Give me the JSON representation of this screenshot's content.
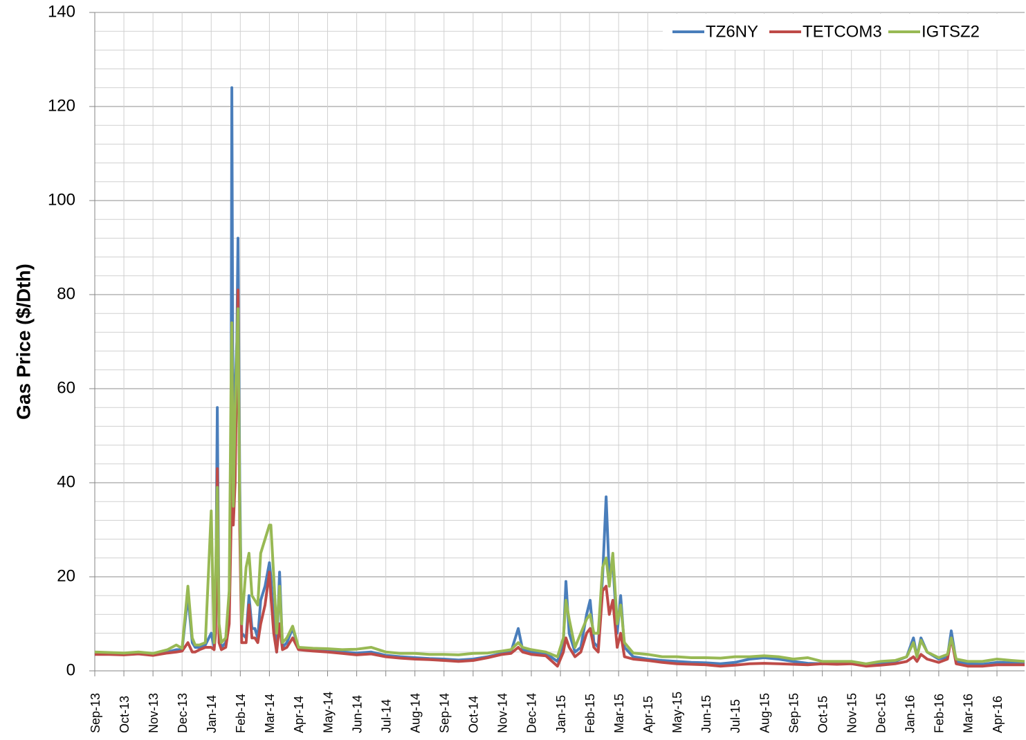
{
  "chart_data": {
    "type": "line",
    "ylabel": "Gas Price ($/Dth)",
    "ylim": [
      0,
      140
    ],
    "yticks": [
      0,
      20,
      40,
      60,
      80,
      100,
      120,
      140
    ],
    "minor_grid_step": 4,
    "grid": true,
    "legend": "top-right",
    "xlim": [
      0,
      31.95
    ],
    "xticks": [
      {
        "value": 0,
        "label": "Sep-13"
      },
      {
        "value": 1,
        "label": "Oct-13"
      },
      {
        "value": 2,
        "label": "Nov-13"
      },
      {
        "value": 3,
        "label": "Dec-13"
      },
      {
        "value": 4,
        "label": "Jan-14"
      },
      {
        "value": 5,
        "label": "Feb-14"
      },
      {
        "value": 6,
        "label": "Mar-14"
      },
      {
        "value": 7,
        "label": "Apr-14"
      },
      {
        "value": 8,
        "label": "May-14"
      },
      {
        "value": 9,
        "label": "Jun-14"
      },
      {
        "value": 10,
        "label": "Jul-14"
      },
      {
        "value": 11,
        "label": "Aug-14"
      },
      {
        "value": 12,
        "label": "Sep-14"
      },
      {
        "value": 13,
        "label": "Oct-14"
      },
      {
        "value": 14,
        "label": "Nov-14"
      },
      {
        "value": 15,
        "label": "Dec-14"
      },
      {
        "value": 16,
        "label": "Jan-15"
      },
      {
        "value": 17,
        "label": "Feb-15"
      },
      {
        "value": 18,
        "label": "Mar-15"
      },
      {
        "value": 19,
        "label": "Apr-15"
      },
      {
        "value": 20,
        "label": "May-15"
      },
      {
        "value": 21,
        "label": "Jun-15"
      },
      {
        "value": 22,
        "label": "Jul-15"
      },
      {
        "value": 23,
        "label": "Aug-15"
      },
      {
        "value": 24,
        "label": "Sep-15"
      },
      {
        "value": 25,
        "label": "Oct-15"
      },
      {
        "value": 26,
        "label": "Nov-15"
      },
      {
        "value": 27,
        "label": "Dec-15"
      },
      {
        "value": 28,
        "label": "Jan-16"
      },
      {
        "value": 29,
        "label": "Feb-16"
      },
      {
        "value": 30,
        "label": "Mar-16"
      },
      {
        "value": 31,
        "label": "Apr-16"
      }
    ],
    "x": [
      0,
      0.5,
      1,
      1.5,
      2,
      2.5,
      2.8,
      3.0,
      3.2,
      3.35,
      3.45,
      3.6,
      3.8,
      4.0,
      4.1,
      4.15,
      4.21,
      4.27,
      4.35,
      4.5,
      4.62,
      4.68,
      4.71,
      4.76,
      4.82,
      4.88,
      4.92,
      4.98,
      5.05,
      5.2,
      5.3,
      5.4,
      5.5,
      5.6,
      5.7,
      5.85,
      6.0,
      6.05,
      6.15,
      6.25,
      6.35,
      6.45,
      6.6,
      6.8,
      7.0,
      7.5,
      8,
      8.5,
      9,
      9.5,
      10,
      10.5,
      11,
      11.5,
      12,
      12.5,
      13,
      13.5,
      14,
      14.3,
      14.55,
      14.7,
      15,
      15.5,
      15.9,
      16.1,
      16.19,
      16.3,
      16.5,
      16.7,
      16.9,
      17.02,
      17.15,
      17.3,
      17.45,
      17.57,
      17.68,
      17.8,
      17.95,
      18.07,
      18.2,
      18.5,
      19,
      19.5,
      20,
      20.5,
      21,
      21.5,
      22,
      22.5,
      23,
      23.5,
      24,
      24.5,
      25,
      25.5,
      26,
      26.5,
      27,
      27.5,
      27.9,
      28.13,
      28.25,
      28.39,
      28.6,
      29,
      29.3,
      29.43,
      29.6,
      30,
      30.5,
      31,
      31.5,
      31.95
    ],
    "series": [
      {
        "name": "TZ6NY",
        "color": "#4a7ebb",
        "values": [
          3.8,
          3.7,
          3.6,
          3.8,
          3.5,
          4,
          4.5,
          4.5,
          16,
          6,
          5,
          5,
          5.5,
          8,
          5,
          10,
          56,
          8,
          5,
          6,
          12,
          50,
          124,
          32,
          60,
          70,
          92,
          40,
          8,
          7,
          16,
          9,
          9,
          7,
          15,
          18,
          23,
          20,
          10,
          4,
          21,
          5,
          6,
          9,
          4.8,
          4.5,
          4.3,
          4,
          3.8,
          4,
          3.3,
          3,
          2.8,
          2.6,
          2.5,
          2.3,
          2.5,
          3,
          3.7,
          4,
          9,
          4.5,
          4,
          3.7,
          2,
          6,
          19,
          8,
          4,
          5,
          12,
          15,
          6,
          5,
          20,
          37,
          20,
          23,
          8,
          16,
          5,
          3,
          2.5,
          2.2,
          2,
          1.8,
          1.7,
          1.5,
          1.8,
          2.5,
          2.8,
          2.5,
          2,
          1.6,
          1.5,
          1.5,
          1.7,
          1.2,
          1.5,
          2,
          3,
          7,
          3,
          7,
          4,
          2.5,
          3,
          8.5,
          2,
          1.5,
          1.4,
          1.8,
          1.7,
          1.6
        ]
      },
      {
        "name": "TETCOM3",
        "color": "#be4b48",
        "values": [
          3.5,
          3.5,
          3.4,
          3.6,
          3.3,
          3.8,
          4,
          4.2,
          6,
          4,
          4,
          4.5,
          5,
          5,
          4.5,
          8,
          43,
          6,
          4.5,
          5,
          10,
          30,
          74,
          31,
          40,
          65,
          81,
          30,
          6,
          6,
          14,
          7,
          7,
          6,
          10,
          14,
          21,
          16,
          8,
          4,
          10,
          4.5,
          5,
          7,
          4.5,
          4.2,
          4,
          3.7,
          3.4,
          3.6,
          3,
          2.7,
          2.5,
          2.4,
          2.2,
          2,
          2.2,
          2.8,
          3.5,
          3.7,
          5,
          4,
          3.5,
          3.2,
          1,
          4,
          7,
          5,
          3,
          4,
          8,
          9,
          5,
          4,
          17,
          18,
          12,
          15,
          5,
          8,
          3,
          2.5,
          2.2,
          1.8,
          1.5,
          1.4,
          1.3,
          1,
          1.2,
          1.5,
          1.6,
          1.5,
          1.4,
          1.3,
          1.5,
          1.4,
          1.5,
          1,
          1.2,
          1.5,
          2,
          3,
          2,
          3.5,
          2.5,
          1.8,
          2.5,
          7,
          1.5,
          1,
          1,
          1.3,
          1.3,
          1.3
        ]
      },
      {
        "name": "IGTSZ2",
        "color": "#98b954",
        "values": [
          4,
          3.9,
          3.8,
          4,
          3.7,
          4.5,
          5.5,
          4.8,
          18,
          7,
          5.5,
          5.5,
          6,
          34,
          6,
          20,
          39,
          10,
          6,
          7,
          17,
          60,
          74,
          35,
          55,
          68,
          77,
          35,
          10,
          22,
          25,
          16,
          15,
          14,
          25,
          28,
          31,
          31,
          20,
          8,
          18,
          6,
          7,
          9.5,
          5,
          4.8,
          4.7,
          4.5,
          4.6,
          5,
          4,
          3.7,
          3.7,
          3.5,
          3.5,
          3.4,
          3.7,
          3.8,
          4.2,
          4.5,
          6,
          5,
          4.5,
          4,
          3,
          7,
          15,
          11,
          5,
          8,
          11,
          12,
          8,
          8,
          22,
          24,
          18,
          25,
          10,
          14,
          6,
          3.8,
          3.5,
          3,
          3,
          2.8,
          2.8,
          2.7,
          3,
          3,
          3.2,
          3,
          2.5,
          2.8,
          2,
          2,
          2,
          1.5,
          2,
          2.2,
          3,
          6,
          3,
          6.5,
          4,
          2.8,
          3.5,
          7,
          2.5,
          2,
          2,
          2.5,
          2.2,
          2
        ]
      }
    ]
  }
}
